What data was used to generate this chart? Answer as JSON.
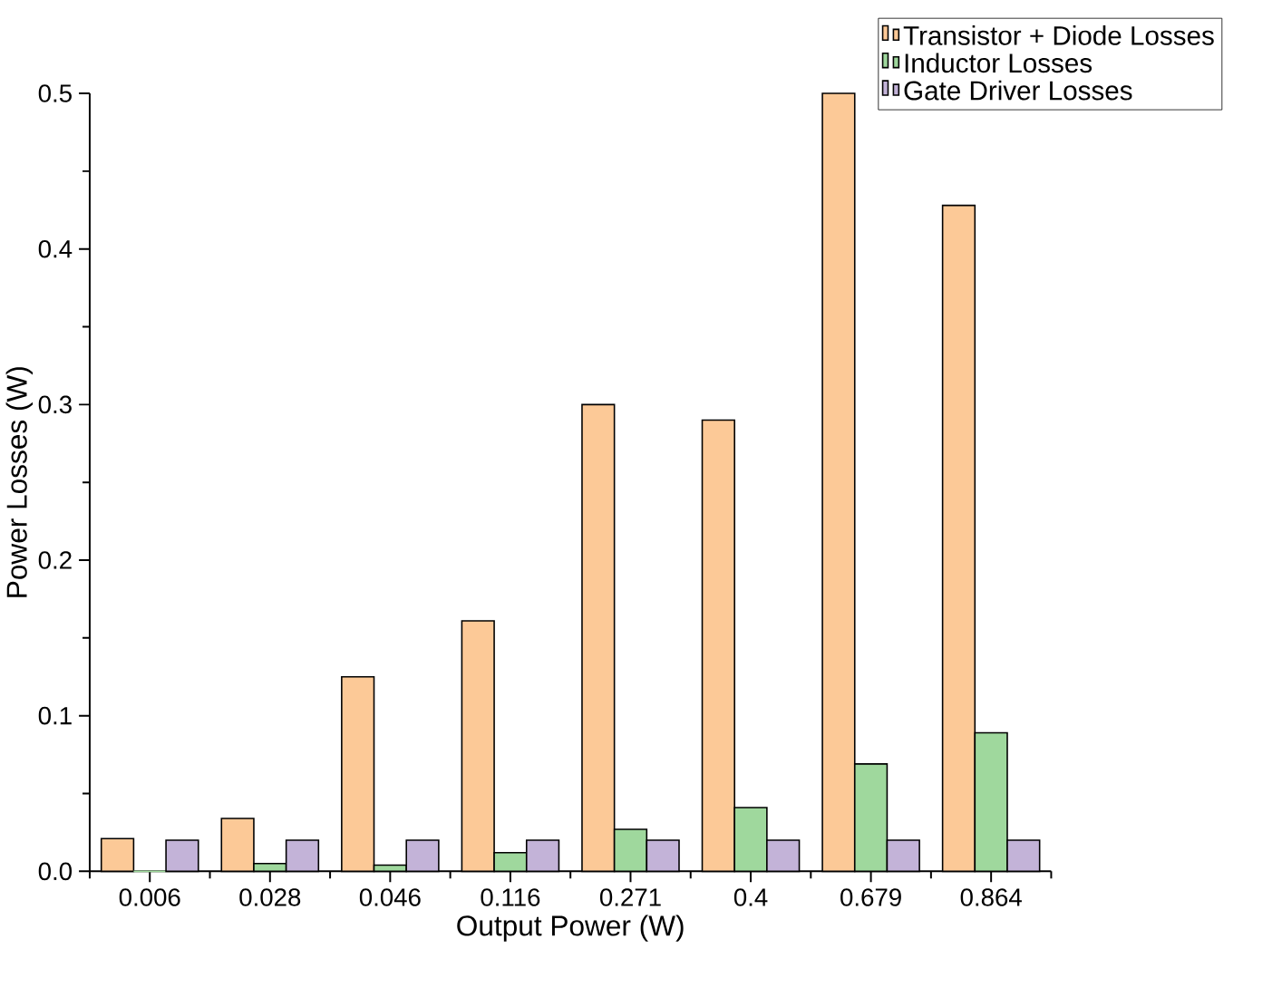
{
  "chart_data": {
    "type": "bar",
    "xlabel": "Output Power (W)",
    "ylabel": "Power Losses (W)",
    "categories": [
      "0.006",
      "0.028",
      "0.046",
      "0.116",
      "0.271",
      "0.4",
      "0.679",
      "0.864"
    ],
    "series": [
      {
        "name": "Transistor + Diode Losses",
        "color": "#fcc997",
        "values": [
          0.021,
          0.034,
          0.125,
          0.161,
          0.3,
          0.29,
          0.5,
          0.428
        ]
      },
      {
        "name": "Inductor Losses",
        "color": "#9fd89d",
        "values": [
          0,
          0.005,
          0.004,
          0.012,
          0.027,
          0.041,
          0.069,
          0.089
        ]
      },
      {
        "name": "Gate Driver Losses",
        "color": "#c3b3d8",
        "values": [
          0.02,
          0.02,
          0.02,
          0.02,
          0.02,
          0.02,
          0.02,
          0.02
        ]
      }
    ],
    "ylim": [
      0,
      0.5
    ],
    "yticks": [
      {
        "value": 0,
        "label": "0.0"
      },
      0.1,
      0.2,
      0.3,
      0.4,
      0.5
    ],
    "legend": "top right"
  }
}
